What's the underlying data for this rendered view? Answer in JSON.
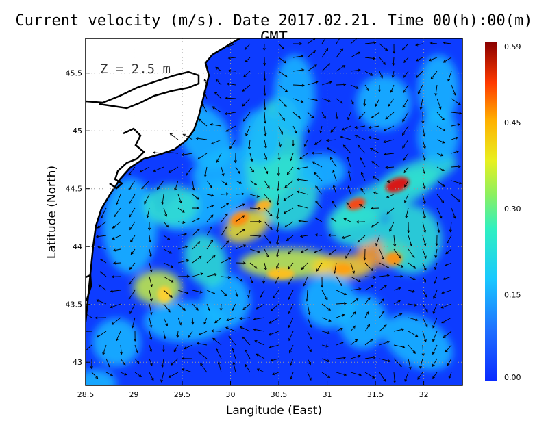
{
  "title": "Current velocity (m/s). Date 2017.02.21. Time 00(h):00(m) GMT",
  "depth_label": "Z = 2.5 m",
  "x_axis": {
    "label": "Langitude (East)",
    "range": [
      28.5,
      32.4
    ],
    "ticks": [
      "28.5",
      "29",
      "29.5",
      "30",
      "30.5",
      "31",
      "31.5",
      "32"
    ],
    "tick_values": [
      28.5,
      29,
      29.5,
      30,
      30.5,
      31,
      31.5,
      32
    ]
  },
  "y_axis": {
    "label": "Latitude (North)",
    "range": [
      42.8,
      45.8
    ],
    "ticks": [
      "43",
      "43.5",
      "44",
      "44.5",
      "45",
      "45.5"
    ],
    "tick_values": [
      43,
      43.5,
      44,
      44.5,
      45,
      45.5
    ]
  },
  "colorbar": {
    "ticks": [
      "0.00",
      "0.15",
      "0.30",
      "0.45",
      "0.59"
    ],
    "tick_values": [
      0.0,
      0.15,
      0.3,
      0.45,
      0.59
    ],
    "min": 0.0,
    "max": 0.59
  },
  "colors": {
    "ocean_low": "#0d3cff",
    "land": "#ffffff",
    "coast": "#000000",
    "grid": "#9a9a9a",
    "arrow": "#000000"
  }
}
